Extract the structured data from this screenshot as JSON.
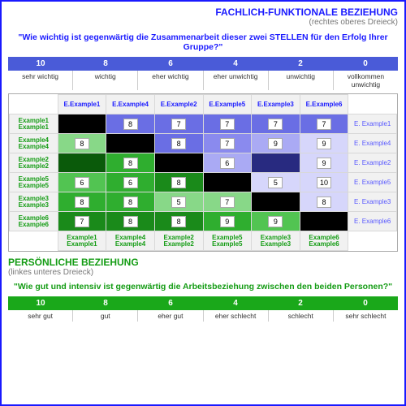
{
  "upper": {
    "title": "FACHLICH-FUNKTIONALE BEZIEHUNG",
    "subtitle": "(rechtes oberes Dreieck)",
    "question": "\"Wie wichtig ist gegenwärtig die Zusammenarbeit dieser zwei STELLEN für den Erfolg Ihrer Gruppe?\"",
    "scale_color": "#4a5bd8",
    "scale_values": [
      "10",
      "8",
      "6",
      "4",
      "2",
      "0"
    ],
    "scale_labels": [
      "sehr wichtig",
      "wichtig",
      "eher wichtig",
      "eher unwichtig",
      "unwichtig",
      "vollkommen unwichtig"
    ],
    "color_ramp": [
      "#282a80",
      "#4a4ed0",
      "#6a6ee4",
      "#8a8aee",
      "#aaaaf4",
      "#d6d6fb"
    ]
  },
  "lower": {
    "title": "PERSÖNLICHE BEZIEHUNG",
    "subtitle": "(linkes unteres Dreieck)",
    "question": "\"Wie gut und intensiv ist gegenwärtig die Arbeitsbeziehung zwischen den beiden Personen?\"",
    "scale_color": "#1aa81a",
    "scale_values": [
      "10",
      "8",
      "6",
      "4",
      "2",
      "0"
    ],
    "scale_labels": [
      "sehr gut",
      "gut",
      "eher gut",
      "eher schlecht",
      "schlecht",
      "sehr schlecht"
    ],
    "color_ramp": [
      "#0a5a0a",
      "#1a8a1a",
      "#2fae2f",
      "#52c452",
      "#88d888",
      "#c6eec6"
    ]
  },
  "matrix": {
    "diag_color": "#000000",
    "col_headers": [
      "E.Example1",
      "E.Example4",
      "E.Example2",
      "E.Example5",
      "E.Example3",
      "E.Example6"
    ],
    "row_left_labels": [
      "Example1",
      "Example4",
      "Example2",
      "Example5",
      "Example3",
      "Example6"
    ],
    "row_right_labels": [
      "E. Example1",
      "E. Example4",
      "E. Example2",
      "E. Example5",
      "E. Example3",
      "E. Example6"
    ],
    "ftr_labels": [
      "Example1",
      "Example4",
      "Example2",
      "Example5",
      "Example3",
      "Example6"
    ],
    "cells": [
      [
        null,
        {
          "v": "8",
          "s": 2
        },
        {
          "v": "7",
          "s": 2
        },
        {
          "v": "7",
          "s": 2
        },
        {
          "v": "7",
          "s": 2
        },
        {
          "v": "7",
          "s": 2
        }
      ],
      [
        {
          "v": "8",
          "s": 4
        },
        null,
        {
          "v": "8",
          "s": 2
        },
        {
          "v": "7",
          "s": 3
        },
        {
          "v": "9",
          "s": 4
        },
        {
          "v": "9",
          "s": 5
        }
      ],
      [
        {
          "v": "",
          "s": 0
        },
        {
          "v": "8",
          "s": 2
        },
        null,
        {
          "v": "6",
          "s": 4
        },
        {
          "v": "",
          "s": 0
        },
        {
          "v": "9",
          "s": 5
        }
      ],
      [
        {
          "v": "6",
          "s": 3
        },
        {
          "v": "6",
          "s": 2
        },
        {
          "v": "8",
          "s": 1
        },
        null,
        {
          "v": "5",
          "s": 5
        },
        {
          "v": "10",
          "s": 5
        }
      ],
      [
        {
          "v": "8",
          "s": 2
        },
        {
          "v": "8",
          "s": 2
        },
        {
          "v": "5",
          "s": 4
        },
        {
          "v": "7",
          "s": 4
        },
        null,
        {
          "v": "8",
          "s": 5
        }
      ],
      [
        {
          "v": "7",
          "s": 1
        },
        {
          "v": "8",
          "s": 1
        },
        {
          "v": "8",
          "s": 1
        },
        {
          "v": "9",
          "s": 2
        },
        {
          "v": "9",
          "s": 3
        },
        null
      ]
    ]
  }
}
